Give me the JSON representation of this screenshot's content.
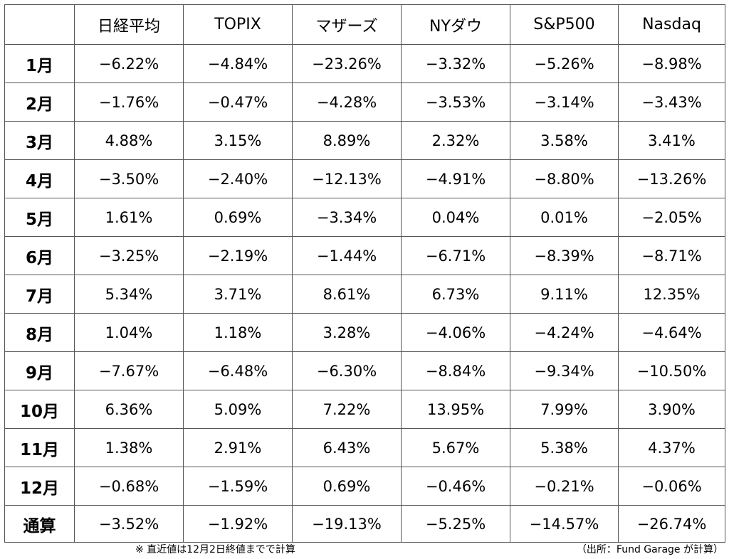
{
  "table": {
    "header": [
      "日経平均",
      "TOPIX",
      "マザーズ",
      "NYダウ",
      "S&P500",
      "Nasdaq"
    ],
    "rows": [
      [
        "1月",
        "−6.22%",
        "−4.84%",
        "−23.26%",
        "−3.32%",
        "−5.26%",
        "−8.98%"
      ],
      [
        "2月",
        "−1.76%",
        "−0.47%",
        "−4.28%",
        "−3.53%",
        "−3.14%",
        "−3.43%"
      ],
      [
        "3月",
        "4.88%",
        "3.15%",
        "8.89%",
        "2.32%",
        "3.58%",
        "3.41%"
      ],
      [
        "4月",
        "−3.50%",
        "−2.40%",
        "−12.13%",
        "−4.91%",
        "−8.80%",
        "−13.26%"
      ],
      [
        "5月",
        "1.61%",
        "0.69%",
        "−3.34%",
        "0.04%",
        "0.01%",
        "−2.05%"
      ],
      [
        "6月",
        "−3.25%",
        "−2.19%",
        "−1.44%",
        "−6.71%",
        "−8.39%",
        "−8.71%"
      ],
      [
        "7月",
        "5.34%",
        "3.71%",
        "8.61%",
        "6.73%",
        "9.11%",
        "12.35%"
      ],
      [
        "8月",
        "1.04%",
        "1.18%",
        "3.28%",
        "−4.06%",
        "−4.24%",
        "−4.64%"
      ],
      [
        "9月",
        "−7.67%",
        "−6.48%",
        "−6.30%",
        "−8.84%",
        "−9.34%",
        "−10.50%"
      ],
      [
        "10月",
        "6.36%",
        "5.09%",
        "7.22%",
        "13.95%",
        "7.99%",
        "3.90%"
      ],
      [
        "11月",
        "1.38%",
        "2.91%",
        "6.43%",
        "5.67%",
        "5.38%",
        "4.37%"
      ],
      [
        "12月",
        "−0.68%",
        "−1.59%",
        "0.69%",
        "−0.46%",
        "−0.21%",
        "−0.06%"
      ],
      [
        "通算",
        "−3.52%",
        "−1.92%",
        "−19.13%",
        "−5.25%",
        "−14.57%",
        "−26.74%"
      ]
    ]
  },
  "footer": {
    "note": "※ 直近値は12月2日終値までで計算",
    "source": "（出所：Fund Garage が計算）"
  }
}
